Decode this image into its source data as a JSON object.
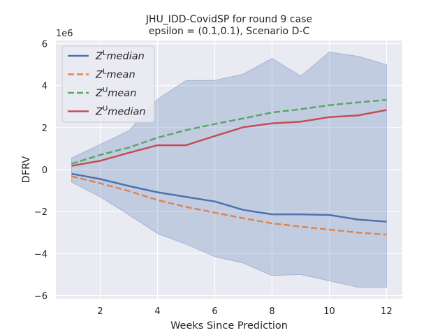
{
  "chart_data": {
    "type": "line",
    "title": "JHU_IDD-CovidSP for round 9 case",
    "subtitle": "epsilon = (0.1,0.1), Scenario D-C",
    "xlabel": "Weeks Since Prediction",
    "ylabel": "DFRV",
    "y_offset_label": "1e6",
    "xlim": [
      0.45,
      12.55
    ],
    "ylim": [
      -6.15,
      6.15
    ],
    "x_ticks": [
      2,
      4,
      6,
      8,
      10,
      12
    ],
    "x_tick_labels": [
      "2",
      "4",
      "6",
      "8",
      "10",
      "12"
    ],
    "y_ticks": [
      -6,
      -4,
      -2,
      0,
      2,
      4,
      6
    ],
    "y_tick_labels": [
      "−6",
      "−4",
      "−2",
      "0",
      "2",
      "4",
      "6"
    ],
    "grid": true,
    "legend_position": "top-left",
    "x": [
      1,
      2,
      3,
      4,
      5,
      6,
      7,
      8,
      9,
      10,
      11,
      12
    ],
    "band": {
      "color": "#4c72b0",
      "upper": [
        0.55,
        1.2,
        1.85,
        3.35,
        4.25,
        4.25,
        4.55,
        5.3,
        4.45,
        5.6,
        5.4,
        5.0
      ],
      "lower": [
        -0.6,
        -1.3,
        -2.15,
        -3.05,
        -3.55,
        -4.15,
        -4.45,
        -5.05,
        -5.0,
        -5.3,
        -5.6,
        -5.6
      ]
    },
    "series": [
      {
        "name_base": "Z",
        "name_sup": "L",
        "name_rest": "median",
        "color": "#4c72b0",
        "dash": "solid",
        "values": [
          -0.2,
          -0.45,
          -0.78,
          -1.08,
          -1.3,
          -1.52,
          -1.92,
          -2.13,
          -2.13,
          -2.16,
          -2.38,
          -2.48
        ]
      },
      {
        "name_base": "Z",
        "name_sup": "L",
        "name_rest": "mean",
        "color": "#dd8452",
        "dash": "dashed",
        "values": [
          -0.32,
          -0.65,
          -1.02,
          -1.45,
          -1.78,
          -2.05,
          -2.32,
          -2.56,
          -2.72,
          -2.86,
          -3.0,
          -3.1
        ]
      },
      {
        "name_base": "Z",
        "name_sup": "U",
        "name_rest": "mean",
        "color": "#55a868",
        "dash": "dashed",
        "values": [
          0.28,
          0.7,
          1.05,
          1.52,
          1.88,
          2.17,
          2.44,
          2.72,
          2.88,
          3.07,
          3.2,
          3.32
        ]
      },
      {
        "name_base": "Z",
        "name_sup": "U",
        "name_rest": "median",
        "color": "#c44e52",
        "dash": "solid",
        "values": [
          0.18,
          0.42,
          0.8,
          1.16,
          1.16,
          1.6,
          2.02,
          2.2,
          2.28,
          2.5,
          2.58,
          2.84
        ]
      }
    ]
  }
}
